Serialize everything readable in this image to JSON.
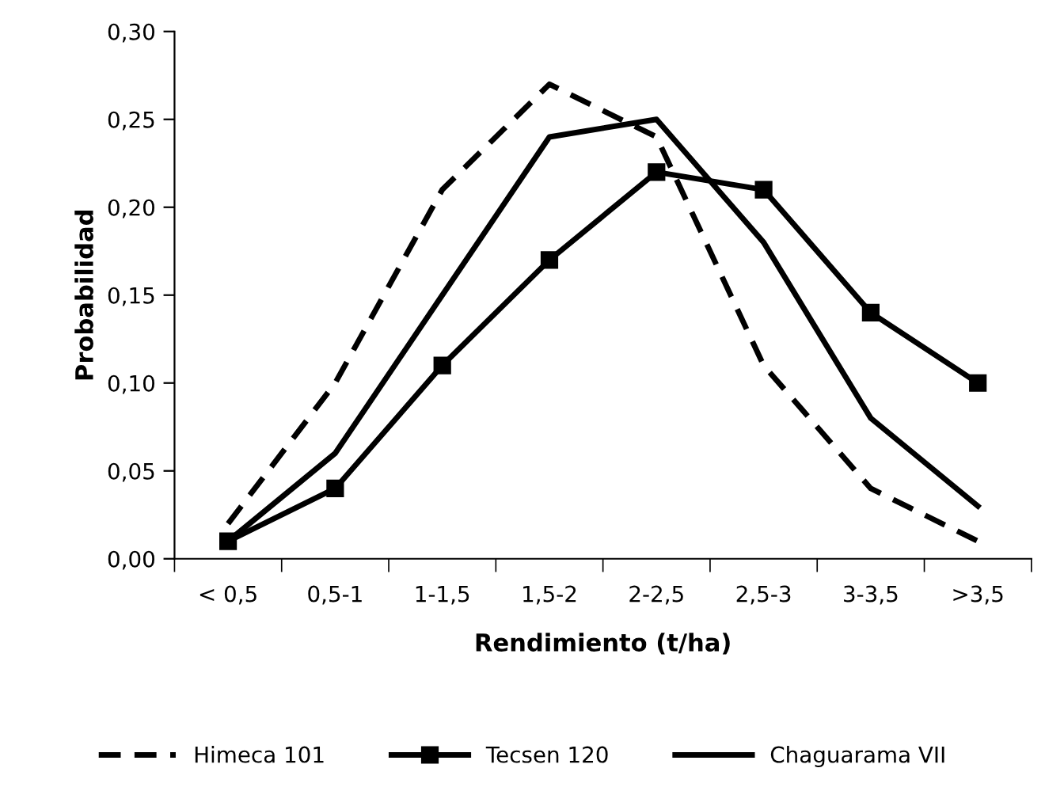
{
  "chart_data": {
    "type": "line",
    "xlabel": "Rendimiento (t/ha)",
    "ylabel": "Probabilidad",
    "categories": [
      "< 0,5",
      "0,5-1",
      "1-1,5",
      "1,5-2",
      "2-2,5",
      "2,5-3",
      "3-3,5",
      ">3,5"
    ],
    "series": [
      {
        "name": "Himeca 101",
        "color": "#000000",
        "line_style": "dashed",
        "marker": "none",
        "values": [
          0.02,
          0.1,
          0.21,
          0.27,
          0.24,
          0.11,
          0.04,
          0.01
        ]
      },
      {
        "name": "Tecsen 120",
        "color": "#000000",
        "line_style": "solid",
        "marker": "square",
        "values": [
          0.01,
          0.04,
          0.11,
          0.17,
          0.22,
          0.21,
          0.14,
          0.1
        ]
      },
      {
        "name": "Chaguarama VII",
        "color": "#000000",
        "line_style": "solid",
        "marker": "none",
        "values": [
          0.01,
          0.06,
          0.15,
          0.24,
          0.25,
          0.18,
          0.08,
          0.03
        ]
      }
    ],
    "ylim": [
      0,
      0.3
    ],
    "yticks": [
      {
        "value": 0,
        "label": "0,00"
      },
      {
        "value": 0.05,
        "label": "0,05"
      },
      {
        "value": 0.1,
        "label": "0,10"
      },
      {
        "value": 0.15,
        "label": "0,15"
      },
      {
        "value": 0.2,
        "label": "0,20"
      },
      {
        "value": 0.25,
        "label": "0,25"
      },
      {
        "value": 0.3,
        "label": "0,30"
      }
    ],
    "grid": false,
    "legend": "bottom"
  }
}
